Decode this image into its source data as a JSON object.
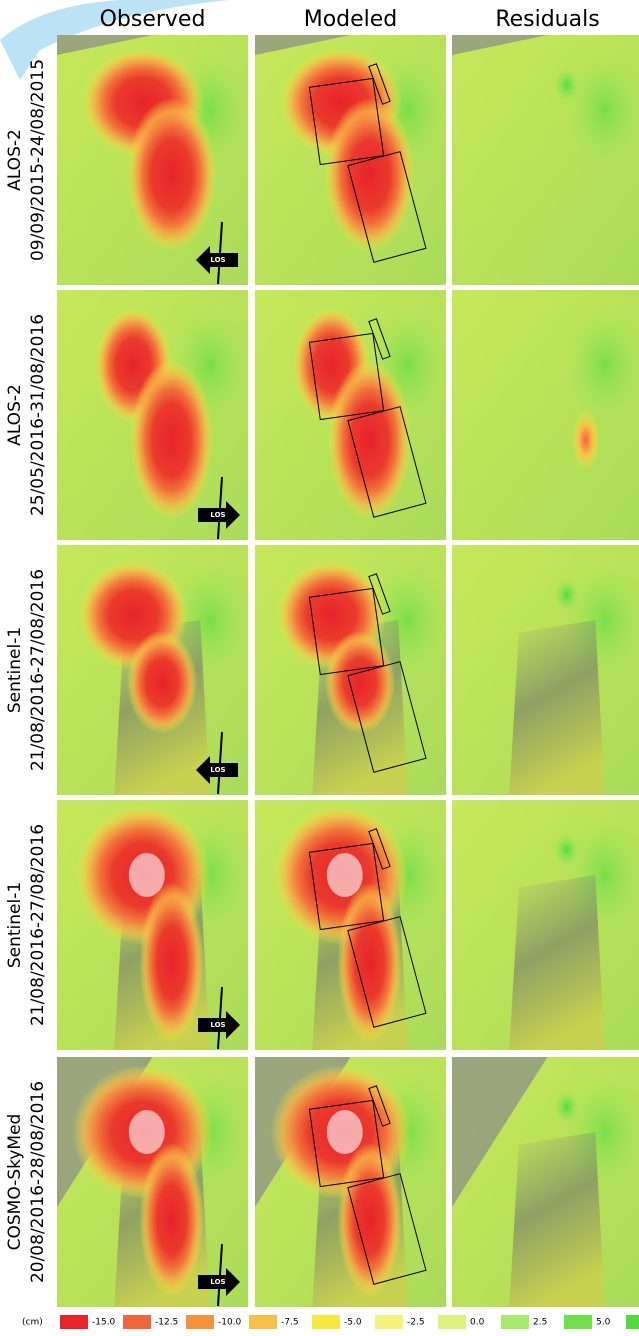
{
  "header": {
    "columns": [
      "Observed",
      "Modeled",
      "Residuals"
    ]
  },
  "rows": [
    {
      "sensor": "ALOS-2",
      "dates": "09/09/2015-24/08/2015",
      "los": "LOS"
    },
    {
      "sensor": "ALOS-2",
      "dates": "25/05/2016-31/08/2016",
      "los": "LOS"
    },
    {
      "sensor": "Sentinel-1",
      "dates": "21/08/2016-27/08/2016",
      "los": "LOS"
    },
    {
      "sensor": "Sentinel-1",
      "dates": "21/08/2016-27/08/2016",
      "los": "LOS"
    },
    {
      "sensor": "COSMO-SkyMed",
      "dates": "20/08/2016-28/08/2016",
      "los": "LOS"
    }
  ],
  "legend": {
    "unit": "(cm)",
    "items": [
      {
        "color": "#e8232a",
        "label": "-15.0"
      },
      {
        "color": "#f2653a",
        "label": "-12.5"
      },
      {
        "color": "#f5933b",
        "label": "-10.0"
      },
      {
        "color": "#f9c046",
        "label": "-7.5"
      },
      {
        "color": "#f6e93c",
        "label": "-5.0"
      },
      {
        "color": "#f3f27a",
        "label": "-2.5"
      },
      {
        "color": "#dcf27a",
        "label": "0.0"
      },
      {
        "color": "#a6ec6a",
        "label": "2.5"
      },
      {
        "color": "#6fe04a",
        "label": "5.0"
      }
    ]
  }
}
